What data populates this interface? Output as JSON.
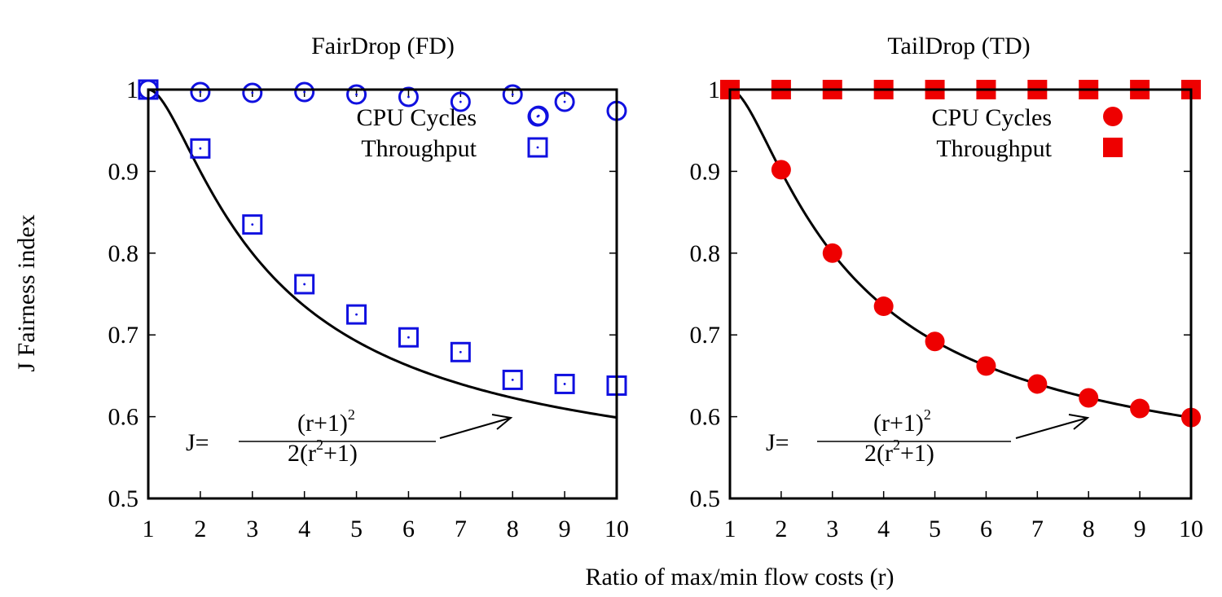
{
  "ylabel": "J Fairness index",
  "xlabel": "Ratio of max/min flow costs (r)",
  "chart_data": [
    {
      "type": "scatter",
      "title": "FairDrop (FD)",
      "xlim": [
        1,
        10
      ],
      "ylim": [
        0.5,
        1
      ],
      "x_ticks": [
        "1",
        "2",
        "3",
        "4",
        "5",
        "6",
        "7",
        "8",
        "9",
        "10"
      ],
      "y_ticks": [
        "0.5",
        "0.6",
        "0.7",
        "0.8",
        "0.9",
        "1"
      ],
      "legend_position": "top-right",
      "series": [
        {
          "name": "CPU Cycles",
          "marker": "open-circle",
          "color": "#1010e0",
          "x": [
            1,
            2,
            3,
            4,
            5,
            6,
            7,
            8,
            8.5,
            9,
            10
          ],
          "y": [
            1.0,
            0.997,
            0.996,
            0.997,
            0.994,
            0.991,
            0.985,
            0.994,
            0.968,
            0.985,
            0.974
          ]
        },
        {
          "name": "Throughput",
          "marker": "open-square",
          "color": "#1010e0",
          "x": [
            1,
            2,
            3,
            4,
            5,
            6,
            7,
            8,
            9,
            10
          ],
          "y": [
            1.0,
            0.928,
            0.835,
            0.762,
            0.725,
            0.697,
            0.679,
            0.645,
            0.64,
            0.638
          ]
        }
      ],
      "curve_color": "#000000",
      "annotation": {
        "lhs": "J=",
        "numerator": "(r+1)",
        "numerator_sup": "2",
        "denominator_pre": "2(r",
        "denominator_sup": "2",
        "denominator_post": "+1)"
      }
    },
    {
      "type": "scatter",
      "title": "TailDrop (TD)",
      "xlim": [
        1,
        10
      ],
      "ylim": [
        0.5,
        1
      ],
      "x_ticks": [
        "1",
        "2",
        "3",
        "4",
        "5",
        "6",
        "7",
        "8",
        "9",
        "10"
      ],
      "y_ticks": [
        "0.5",
        "0.6",
        "0.7",
        "0.8",
        "0.9",
        "1"
      ],
      "legend_position": "top-right",
      "series": [
        {
          "name": "CPU Cycles",
          "marker": "filled-circle",
          "color": "#ee0000",
          "x": [
            1,
            2,
            3,
            4,
            5,
            6,
            7,
            8,
            9,
            10
          ],
          "y": [
            1.0,
            0.902,
            0.8,
            0.735,
            0.692,
            0.662,
            0.64,
            0.623,
            0.61,
            0.599
          ]
        },
        {
          "name": "Throughput",
          "marker": "filled-square",
          "color": "#ee0000",
          "x": [
            1,
            2,
            3,
            4,
            5,
            6,
            7,
            8,
            9,
            10
          ],
          "y": [
            1.0,
            1.0,
            1.0,
            1.0,
            1.0,
            1.0,
            1.0,
            1.0,
            1.0,
            1.0
          ]
        }
      ],
      "curve_color": "#000000",
      "annotation": {
        "lhs": "J=",
        "numerator": "(r+1)",
        "numerator_sup": "2",
        "denominator_pre": "2(r",
        "denominator_sup": "2",
        "denominator_post": "+1)"
      }
    }
  ]
}
